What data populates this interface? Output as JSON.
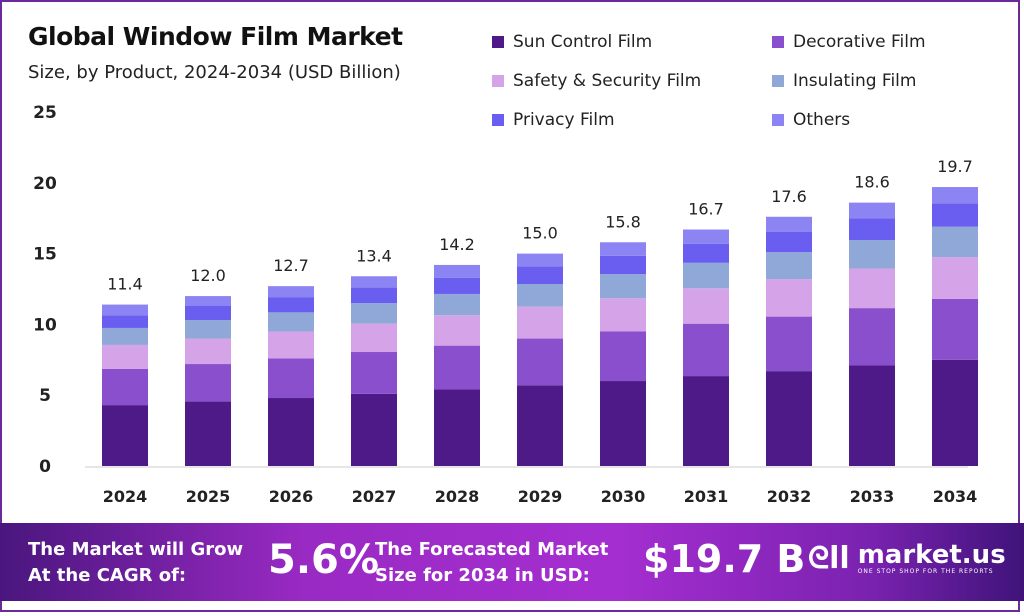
{
  "chart_data": {
    "type": "bar",
    "stacked": true,
    "title": "Global Window Film Market",
    "subtitle": "Size, by Product, 2024-2034 (USD Billion)",
    "xlabel": "",
    "ylabel": "",
    "ylim": [
      0,
      25
    ],
    "yticks": [
      0,
      5,
      10,
      15,
      20,
      25
    ],
    "grid": false,
    "legend_position": "top-right",
    "categories": [
      "2024",
      "2025",
      "2026",
      "2027",
      "2028",
      "2029",
      "2030",
      "2031",
      "2032",
      "2033",
      "2034"
    ],
    "totals": [
      "11.4",
      "12.0",
      "12.7",
      "13.4",
      "14.2",
      "15.0",
      "15.8",
      "16.7",
      "17.6",
      "18.6",
      "19.7"
    ],
    "series": [
      {
        "name": "Sun Control Film",
        "color": "#4e1a87",
        "values": [
          4.3,
          4.55,
          4.8,
          5.1,
          5.4,
          5.7,
          6.0,
          6.35,
          6.7,
          7.1,
          7.5
        ]
      },
      {
        "name": "Decorative Film",
        "color": "#8a4fcc",
        "values": [
          2.55,
          2.65,
          2.8,
          2.95,
          3.1,
          3.3,
          3.5,
          3.7,
          3.85,
          4.05,
          4.3
        ]
      },
      {
        "name": "Safety & Security Film",
        "color": "#d4a3e8",
        "values": [
          1.7,
          1.8,
          1.9,
          2.0,
          2.15,
          2.25,
          2.35,
          2.5,
          2.65,
          2.8,
          2.95
        ]
      },
      {
        "name": "Insulating Film",
        "color": "#8fa8d8",
        "values": [
          1.2,
          1.3,
          1.35,
          1.45,
          1.5,
          1.6,
          1.7,
          1.8,
          1.9,
          2.0,
          2.15
        ]
      },
      {
        "name": "Privacy Film",
        "color": "#6a5ef0",
        "values": [
          0.9,
          1.0,
          1.05,
          1.1,
          1.15,
          1.25,
          1.3,
          1.35,
          1.45,
          1.55,
          1.65
        ]
      },
      {
        "name": "Others",
        "color": "#8b84f2",
        "values": [
          0.75,
          0.7,
          0.8,
          0.8,
          0.9,
          0.9,
          0.95,
          1.0,
          1.05,
          1.1,
          1.15
        ]
      }
    ]
  },
  "footer": {
    "cagr_label_1": "The Market will Grow",
    "cagr_label_2": "At the CAGR of:",
    "cagr_value": "5.6%",
    "forecast_label_1": "The Forecasted Market",
    "forecast_label_2": "Size for 2034 in USD:",
    "forecast_value": "$19.7 B",
    "logo_text": "market.us",
    "logo_tagline": "ONE STOP SHOP FOR THE REPORTS"
  }
}
